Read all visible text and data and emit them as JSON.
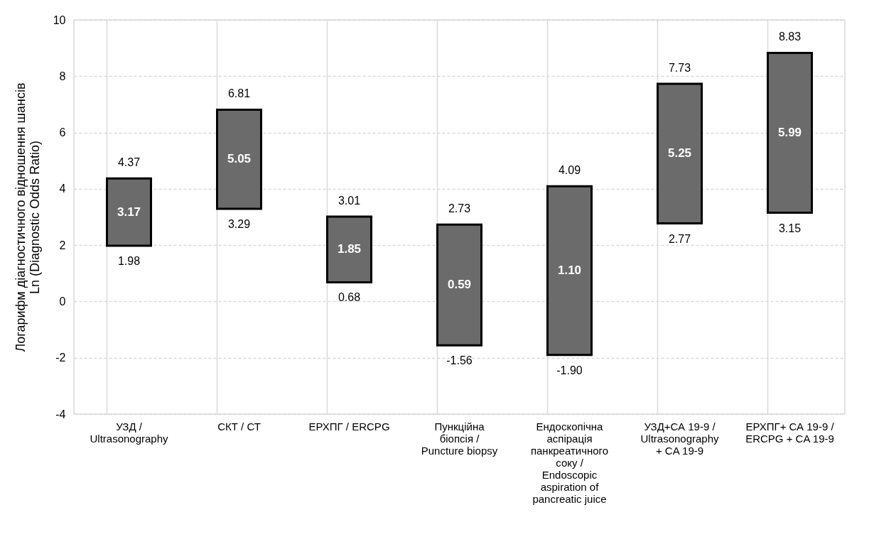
{
  "chart_data": {
    "type": "bar",
    "ylabel": "Логарифм діагностичного відношення шансів\nLn (Diagnostic Odds Ratio)",
    "categories": [
      "УЗД / Ultrasonography",
      "СКТ / СТ",
      "ЕРХПГ / ERCPG",
      "Пункційна біопсія / Puncture biopsy",
      "Ендоскопічна аспірація панкреатичного соку / Endoscopic aspiration of pancreatic juice",
      "УЗД+СА 19-9 / Ultrasonography + CA 19-9",
      "ЕРХПГ+ СА 19-9 / ERCPG + CA 19-9"
    ],
    "base": [
      1.98,
      3.29,
      0.68,
      -1.56,
      -1.9,
      2.77,
      3.15
    ],
    "values": [
      2.39,
      3.52,
      2.33,
      4.29,
      5.99,
      4.96,
      5.68
    ],
    "color": "#6b6b6b",
    "annotations": [
      "3.17",
      "5.05",
      "1.85",
      "0.59",
      "1.10",
      "5.25",
      "5.99",
      {
        "text": "4.37",
        "x": "УЗД / Ultrasonography",
        "y": 4.37
      },
      {
        "text": "1.98",
        "x": "УЗД / Ultrasonography",
        "y": 1.98
      },
      {
        "text": "6.81",
        "x": "СКТ / СТ",
        "y": 6.81
      },
      {
        "text": "3.29",
        "x": "СКТ / СТ",
        "y": 3.29
      },
      {
        "text": "3.01",
        "x": "ЕРХПГ / ERCPG",
        "y": 3.01
      },
      {
        "text": "0.68",
        "x": "ЕРХПГ / ERCPG",
        "y": 0.68
      },
      {
        "text": "2.73",
        "x": "Пункційна біопсія / Puncture biopsy",
        "y": 2.73
      },
      {
        "text": "-1.56",
        "x": "Пункційна біопсія / Puncture biopsy",
        "y": -1.56
      },
      {
        "text": "4.09",
        "x": "Ендоскопічна аспірація панкреатичного соку / Endoscopic aspiration of pancreatic juice",
        "y": 4.09
      },
      {
        "text": "-1.90",
        "x": "Ендоскопічна аспірація панкреатичного соку / Endoscopic aspiration of pancreatic juice",
        "y": -1.9
      },
      {
        "text": "7.73",
        "x": "УЗД+СА 19-9 / Ultrasonography + CA 19-9",
        "y": 7.73
      },
      {
        "text": "2.77",
        "x": "УЗД+СА 19-9 / Ultrasonography + CA 19-9",
        "y": 2.77
      },
      {
        "text": "8.83",
        "x": "ЕРХПГ+ СА 19-9 / ERCPG + CA 19-9",
        "y": 8.83
      },
      {
        "text": "3.15",
        "x": "ЕРХПГ+ СА 19-9 / ERCPG + CA 19-9",
        "y": 3.15
      }
    ],
    "ylim": [
      -4,
      10
    ],
    "yticks": [
      -4,
      -2,
      0,
      2,
      4,
      6,
      8,
      10
    ],
    "grid": true
  }
}
